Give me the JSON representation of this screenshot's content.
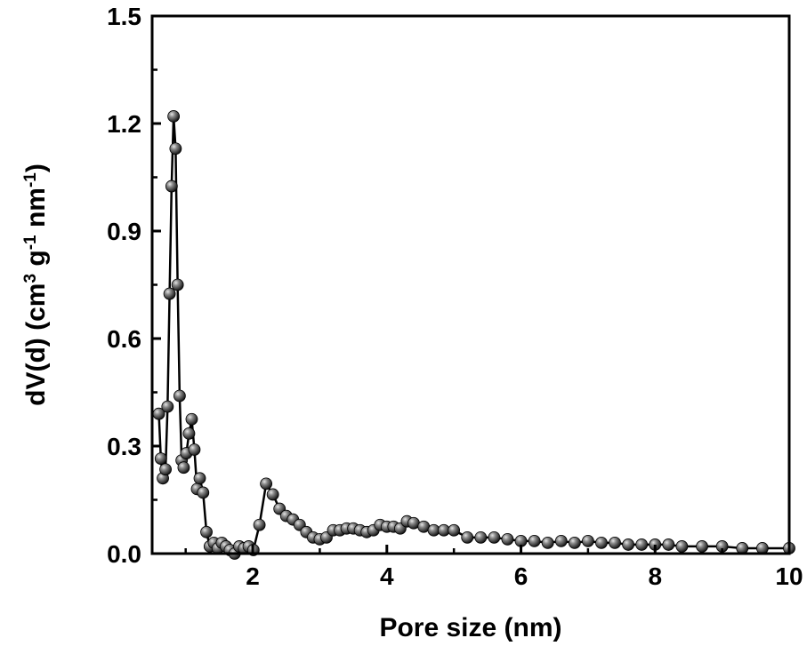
{
  "chart_data": {
    "type": "line",
    "xlabel": "Pore size (nm)",
    "ylabel": {
      "parts": [
        {
          "text": "dV(d) (cm",
          "sup": false
        },
        {
          "text": "3",
          "sup": true
        },
        {
          "text": " g",
          "sup": false
        },
        {
          "text": "-1",
          "sup": true
        },
        {
          "text": " nm",
          "sup": false
        },
        {
          "text": "-1",
          "sup": true
        },
        {
          "text": ")",
          "sup": false
        }
      ]
    },
    "xlim": [
      0.5,
      10
    ],
    "ylim": [
      0,
      1.5
    ],
    "x_ticks": [
      {
        "value": 2,
        "label": "2"
      },
      {
        "value": 4,
        "label": "4"
      },
      {
        "value": 6,
        "label": "6"
      },
      {
        "value": 8,
        "label": "8"
      },
      {
        "value": 10,
        "label": "10"
      }
    ],
    "y_ticks": [
      {
        "value": 0,
        "label": "0.0"
      },
      {
        "value": 0.3,
        "label": "0.3"
      },
      {
        "value": 0.6,
        "label": "0.6"
      },
      {
        "value": 0.9,
        "label": "0.9"
      },
      {
        "value": 1.2,
        "label": "1.2"
      },
      {
        "value": 1.5,
        "label": "1.5"
      }
    ],
    "grid": false,
    "legend": "none",
    "series": [
      {
        "color": "#000000",
        "marker": "sphere",
        "x": [
          0.6,
          0.63,
          0.66,
          0.7,
          0.73,
          0.76,
          0.79,
          0.82,
          0.85,
          0.88,
          0.91,
          0.94,
          0.97,
          1.01,
          1.05,
          1.09,
          1.13,
          1.17,
          1.21,
          1.26,
          1.31,
          1.36,
          1.42,
          1.48,
          1.54,
          1.6,
          1.66,
          1.73,
          1.8,
          1.87,
          1.94,
          2.01,
          2.1,
          2.2,
          2.3,
          2.4,
          2.5,
          2.6,
          2.7,
          2.8,
          2.9,
          3.0,
          3.1,
          3.2,
          3.3,
          3.4,
          3.5,
          3.6,
          3.7,
          3.8,
          3.9,
          4.0,
          4.1,
          4.2,
          4.3,
          4.4,
          4.55,
          4.7,
          4.85,
          5.0,
          5.2,
          5.4,
          5.6,
          5.8,
          6.0,
          6.2,
          6.4,
          6.6,
          6.8,
          7.0,
          7.2,
          7.4,
          7.6,
          7.8,
          8.0,
          8.2,
          8.4,
          8.7,
          9.0,
          9.3,
          9.6,
          10.0
        ],
        "y": [
          0.39,
          0.265,
          0.21,
          0.235,
          0.41,
          0.725,
          1.025,
          1.22,
          1.13,
          0.75,
          0.44,
          0.26,
          0.24,
          0.28,
          0.335,
          0.375,
          0.29,
          0.18,
          0.21,
          0.17,
          0.06,
          0.02,
          0.03,
          0.015,
          0.03,
          0.02,
          0.01,
          0.0,
          0.02,
          0.015,
          0.02,
          0.01,
          0.08,
          0.195,
          0.165,
          0.125,
          0.105,
          0.095,
          0.08,
          0.06,
          0.045,
          0.04,
          0.045,
          0.065,
          0.065,
          0.07,
          0.07,
          0.065,
          0.06,
          0.065,
          0.08,
          0.075,
          0.075,
          0.07,
          0.09,
          0.085,
          0.075,
          0.065,
          0.065,
          0.065,
          0.045,
          0.045,
          0.045,
          0.04,
          0.035,
          0.035,
          0.03,
          0.035,
          0.03,
          0.035,
          0.03,
          0.03,
          0.025,
          0.025,
          0.025,
          0.025,
          0.02,
          0.02,
          0.02,
          0.015,
          0.015,
          0.015
        ]
      }
    ]
  }
}
